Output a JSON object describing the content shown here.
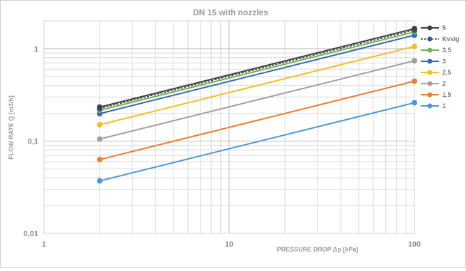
{
  "chart_data": {
    "type": "line",
    "title": "DN 15 with nozzles",
    "xlabel": "PRESSURE DROP Δp  [kPa]",
    "ylabel": "FLOW RATE Q  [m3/h]",
    "x_scale": "log",
    "y_scale": "log",
    "xlim": [
      1,
      100
    ],
    "ylim": [
      0.01,
      2
    ],
    "x_ticks": [
      "1",
      "10",
      "100"
    ],
    "y_ticks": [
      "0,01",
      "0,1",
      "1"
    ],
    "grid": true,
    "legend_position": "right",
    "x": [
      2,
      100
    ],
    "series": [
      {
        "name": "5",
        "color": "#404040",
        "dash": false,
        "values": [
          0.233,
          1.65
        ]
      },
      {
        "name": "Kvsig",
        "color": "#2e5e8e",
        "dash": true,
        "values": [
          0.225,
          1.59
        ]
      },
      {
        "name": "3,5",
        "color": "#6ab64a",
        "dash": false,
        "values": [
          0.215,
          1.52
        ]
      },
      {
        "name": "3",
        "color": "#3b66b6",
        "dash": false,
        "values": [
          0.198,
          1.4
        ]
      },
      {
        "name": "2,5",
        "color": "#f5bd1f",
        "dash": false,
        "values": [
          0.15,
          1.06
        ]
      },
      {
        "name": "2",
        "color": "#a0a0a0",
        "dash": false,
        "values": [
          0.105,
          0.74
        ]
      },
      {
        "name": "1,5",
        "color": "#ed7d31",
        "dash": false,
        "values": [
          0.063,
          0.445
        ]
      },
      {
        "name": "1",
        "color": "#4d96d6",
        "dash": false,
        "values": [
          0.037,
          0.26
        ]
      }
    ]
  }
}
